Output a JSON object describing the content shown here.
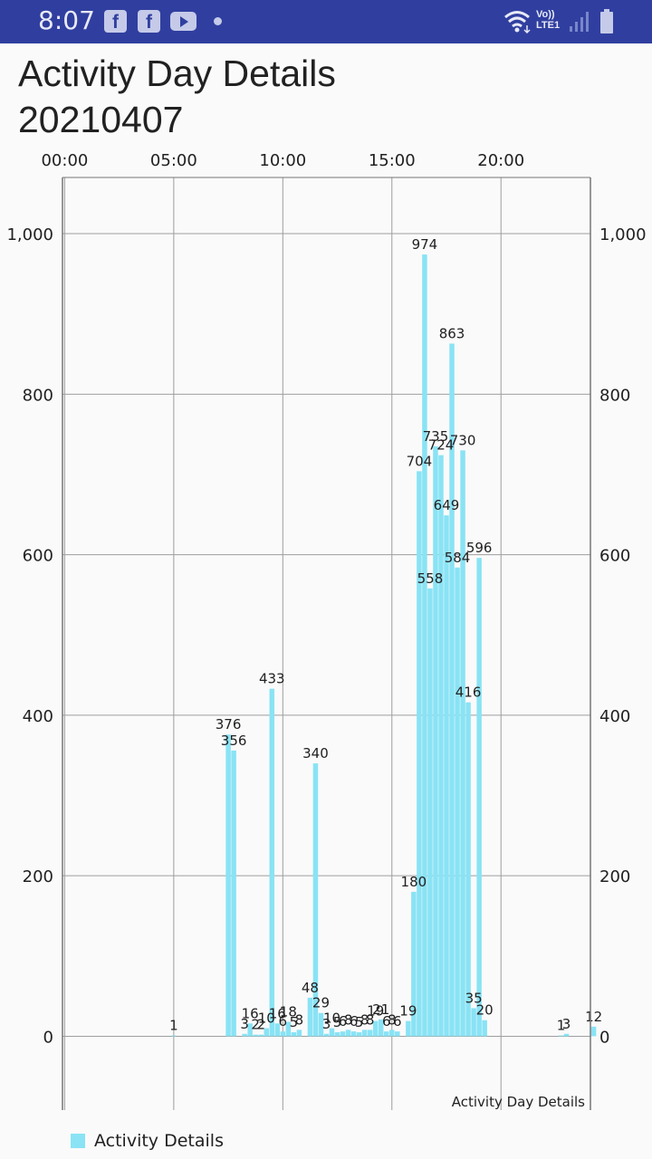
{
  "status_bar": {
    "time": "8:07",
    "notification_icons": [
      "facebook-icon",
      "facebook-icon",
      "youtube-icon",
      "dot-icon"
    ],
    "volte_label": "Vo)) LTE1",
    "system_icons": [
      "wifi-icon",
      "signal-icon",
      "battery-icon"
    ]
  },
  "page": {
    "title": "Activity Day Details\n20210407"
  },
  "chart_data": {
    "type": "bar",
    "description_label": "Activity Day Details",
    "legend": {
      "placement": "bottom-left",
      "label": "Activity Details"
    },
    "series": [
      {
        "name": "Activity Details",
        "color": "#89e3f5",
        "points": [
          {
            "x": 5.0,
            "y": 1
          },
          {
            "x": 7.5,
            "y": 376
          },
          {
            "x": 7.75,
            "y": 356
          },
          {
            "x": 8.25,
            "y": 3
          },
          {
            "x": 8.5,
            "y": 16
          },
          {
            "x": 8.75,
            "y": 2
          },
          {
            "x": 9.0,
            "y": 2
          },
          {
            "x": 9.25,
            "y": 10
          },
          {
            "x": 9.5,
            "y": 433
          },
          {
            "x": 9.75,
            "y": 16
          },
          {
            "x": 10.0,
            "y": 6
          },
          {
            "x": 10.25,
            "y": 18
          },
          {
            "x": 10.5,
            "y": 5
          },
          {
            "x": 10.75,
            "y": 8
          },
          {
            "x": 11.25,
            "y": 48
          },
          {
            "x": 11.5,
            "y": 340
          },
          {
            "x": 11.75,
            "y": 29
          },
          {
            "x": 12.0,
            "y": 3
          },
          {
            "x": 12.25,
            "y": 10
          },
          {
            "x": 12.5,
            "y": 5
          },
          {
            "x": 12.75,
            "y": 6
          },
          {
            "x": 13.0,
            "y": 8
          },
          {
            "x": 13.25,
            "y": 6
          },
          {
            "x": 13.5,
            "y": 5
          },
          {
            "x": 13.75,
            "y": 8
          },
          {
            "x": 14.0,
            "y": 8
          },
          {
            "x": 14.25,
            "y": 19
          },
          {
            "x": 14.5,
            "y": 21
          },
          {
            "x": 14.75,
            "y": 6
          },
          {
            "x": 15.0,
            "y": 8
          },
          {
            "x": 15.25,
            "y": 6
          },
          {
            "x": 15.75,
            "y": 19
          },
          {
            "x": 16.0,
            "y": 180
          },
          {
            "x": 16.25,
            "y": 704
          },
          {
            "x": 16.5,
            "y": 974
          },
          {
            "x": 16.75,
            "y": 558
          },
          {
            "x": 17.0,
            "y": 735
          },
          {
            "x": 17.25,
            "y": 724
          },
          {
            "x": 17.5,
            "y": 649
          },
          {
            "x": 17.75,
            "y": 863
          },
          {
            "x": 18.0,
            "y": 584
          },
          {
            "x": 18.25,
            "y": 730
          },
          {
            "x": 18.5,
            "y": 416
          },
          {
            "x": 18.75,
            "y": 35
          },
          {
            "x": 19.0,
            "y": 596
          },
          {
            "x": 19.25,
            "y": 20
          },
          {
            "x": 22.75,
            "y": 1
          },
          {
            "x": 23.0,
            "y": 3
          },
          {
            "x": 24.25,
            "y": 12
          }
        ]
      }
    ],
    "x_axis": {
      "position": "top",
      "min": -0.1,
      "max": 24.1,
      "ticks": [
        0,
        5,
        10,
        15,
        20
      ],
      "tick_labels": [
        "00:00",
        "05:00",
        "10:00",
        "15:00",
        "20:00"
      ]
    },
    "y_axis": {
      "min": -92,
      "max": 1070,
      "ticks": [
        0,
        200,
        400,
        600,
        800,
        1000
      ],
      "tick_labels": [
        "0",
        "200",
        "400",
        "600",
        "800",
        "1,000"
      ],
      "left_and_right": true
    },
    "grid": true
  }
}
